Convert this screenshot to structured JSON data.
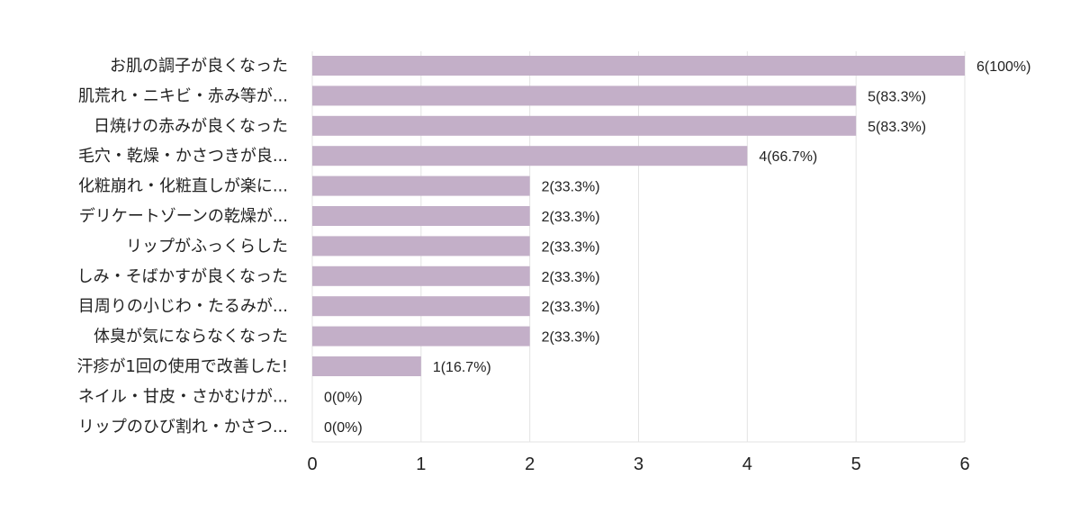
{
  "chart_data": {
    "type": "bar",
    "orientation": "horizontal",
    "categories": [
      "お肌の調子が良くなった",
      "肌荒れ・ニキビ・赤み等が...",
      "日焼けの赤みが良くなった",
      "毛穴・乾燥・かさつきが良...",
      "化粧崩れ・化粧直しが楽に...",
      "デリケートゾーンの乾燥が...",
      "リップがふっくらした",
      "しみ・そばかすが良くなった",
      "目周りの小じわ・たるみが...",
      "体臭が気にならなくなった",
      "汗疹が1回の使用で改善した!",
      "ネイル・甘皮・さかむけが...",
      "リップのひび割れ・かさつ..."
    ],
    "values": [
      6,
      5,
      5,
      4,
      2,
      2,
      2,
      2,
      2,
      2,
      1,
      0,
      0
    ],
    "data_labels": [
      "6(100%)",
      "5(83.3%)",
      "5(83.3%)",
      "4(66.7%)",
      "2(33.3%)",
      "2(33.3%)",
      "2(33.3%)",
      "2(33.3%)",
      "2(33.3%)",
      "2(33.3%)",
      "1(16.7%)",
      "0(0%)",
      "0(0%)"
    ],
    "xlim": [
      0,
      6
    ],
    "x_ticks": [
      "0",
      "1",
      "2",
      "3",
      "4",
      "5",
      "6"
    ],
    "grid": true,
    "bar_color": "#c3afc8",
    "title": "",
    "xlabel": "",
    "ylabel": ""
  }
}
